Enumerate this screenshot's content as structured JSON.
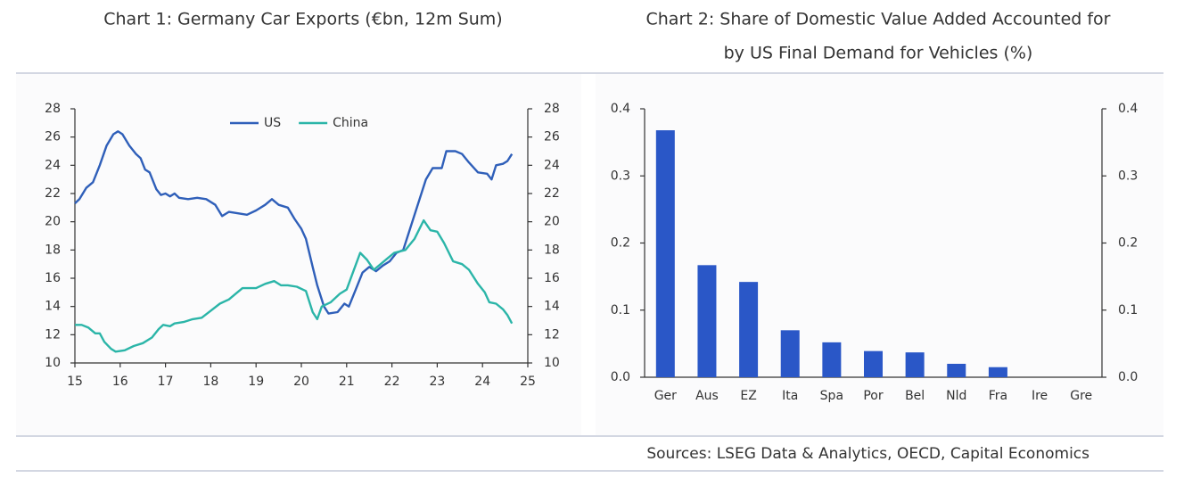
{
  "chart_data": [
    {
      "type": "line",
      "title": "Chart 1: Germany Car Exports (€bn, 12m Sum)",
      "xlim": [
        15,
        25
      ],
      "xticks": [
        15,
        16,
        17,
        18,
        19,
        20,
        21,
        22,
        23,
        24,
        25
      ],
      "ylim": [
        10,
        28
      ],
      "yticks": [
        10,
        12,
        14,
        16,
        18,
        20,
        22,
        24,
        26,
        28
      ],
      "y2lim": [
        10,
        28
      ],
      "y2ticks": [
        10,
        12,
        14,
        16,
        18,
        20,
        22,
        24,
        26,
        28
      ],
      "legend": "upper center",
      "series": [
        {
          "name": "US",
          "color": "#2f5fb9",
          "x": [
            15.0,
            15.1,
            15.25,
            15.4,
            15.55,
            15.7,
            15.85,
            15.95,
            16.05,
            16.2,
            16.35,
            16.45,
            16.55,
            16.65,
            16.8,
            16.9,
            17.0,
            17.1,
            17.2,
            17.3,
            17.5,
            17.7,
            17.9,
            18.1,
            18.25,
            18.4,
            18.6,
            18.8,
            19.0,
            19.2,
            19.35,
            19.5,
            19.7,
            19.85,
            20.0,
            20.1,
            20.25,
            20.35,
            20.5,
            20.6,
            20.8,
            20.95,
            21.05,
            21.2,
            21.35,
            21.5,
            21.65,
            21.8,
            21.95,
            22.1,
            22.25,
            22.4,
            22.6,
            22.75,
            22.9,
            23.1,
            23.2,
            23.4,
            23.55,
            23.7,
            23.9,
            24.1,
            24.2,
            24.3,
            24.45,
            24.55,
            24.65
          ],
          "values": [
            21.3,
            21.6,
            22.4,
            22.8,
            24.0,
            25.4,
            26.2,
            26.4,
            26.2,
            25.4,
            24.8,
            24.5,
            23.7,
            23.5,
            22.3,
            21.9,
            22.0,
            21.8,
            22.0,
            21.7,
            21.6,
            21.7,
            21.6,
            21.2,
            20.4,
            20.7,
            20.6,
            20.5,
            20.8,
            21.2,
            21.6,
            21.2,
            21.0,
            20.2,
            19.5,
            18.8,
            16.8,
            15.5,
            14.0,
            13.5,
            13.6,
            14.2,
            14.0,
            15.2,
            16.4,
            16.8,
            16.5,
            16.9,
            17.2,
            17.8,
            18.0,
            19.5,
            21.5,
            23.0,
            23.8,
            23.8,
            25.0,
            25.0,
            24.8,
            24.2,
            23.5,
            23.4,
            23.0,
            24.0,
            24.1,
            24.3,
            24.8
          ]
        },
        {
          "name": "China",
          "color": "#2bb5a8",
          "x": [
            15.0,
            15.15,
            15.3,
            15.45,
            15.55,
            15.65,
            15.8,
            15.9,
            16.1,
            16.3,
            16.5,
            16.7,
            16.85,
            16.95,
            17.1,
            17.2,
            17.4,
            17.6,
            17.8,
            18.0,
            18.2,
            18.4,
            18.55,
            18.7,
            18.85,
            19.0,
            19.2,
            19.4,
            19.55,
            19.7,
            19.9,
            20.1,
            20.25,
            20.35,
            20.45,
            20.65,
            20.85,
            21.0,
            21.15,
            21.3,
            21.45,
            21.6,
            21.75,
            21.9,
            22.05,
            22.3,
            22.5,
            22.7,
            22.85,
            23.0,
            23.15,
            23.35,
            23.55,
            23.7,
            23.9,
            24.05,
            24.15,
            24.3,
            24.45,
            24.55,
            24.65
          ],
          "values": [
            12.7,
            12.7,
            12.5,
            12.1,
            12.1,
            11.5,
            11.0,
            10.8,
            10.9,
            11.2,
            11.4,
            11.8,
            12.4,
            12.7,
            12.6,
            12.8,
            12.9,
            13.1,
            13.2,
            13.7,
            14.2,
            14.5,
            14.9,
            15.3,
            15.3,
            15.3,
            15.6,
            15.8,
            15.5,
            15.5,
            15.4,
            15.1,
            13.6,
            13.1,
            14.0,
            14.3,
            14.9,
            15.2,
            16.5,
            17.8,
            17.3,
            16.6,
            17.0,
            17.4,
            17.8,
            18.0,
            18.8,
            20.1,
            19.4,
            19.3,
            18.5,
            17.2,
            17.0,
            16.6,
            15.6,
            15.0,
            14.3,
            14.2,
            13.8,
            13.4,
            12.8
          ]
        }
      ]
    },
    {
      "type": "bar",
      "title": [
        "Chart 2: Share of Domestic Value Added Accounted for",
        "by US Final Demand for Vehicles (%)"
      ],
      "categories": [
        "Ger",
        "Aus",
        "EZ",
        "Ita",
        "Spa",
        "Por",
        "Bel",
        "Nld",
        "Fra",
        "Ire",
        "Gre"
      ],
      "values": [
        0.368,
        0.167,
        0.142,
        0.07,
        0.052,
        0.039,
        0.037,
        0.02,
        0.015,
        0,
        0
      ],
      "color": "#2a57c7",
      "ylim": [
        0,
        0.4
      ],
      "yticks": [
        {
          "value": 0,
          "label": "0.0"
        },
        0.1,
        0.2,
        0.3,
        0.4
      ],
      "y2lim": [
        0,
        0.4
      ],
      "y2ticks": [
        {
          "value": 0,
          "label": "0.0"
        },
        0.1,
        0.2,
        0.3,
        0.4
      ]
    }
  ],
  "source": "Sources: LSEG Data & Analytics, OECD, Capital Economics"
}
